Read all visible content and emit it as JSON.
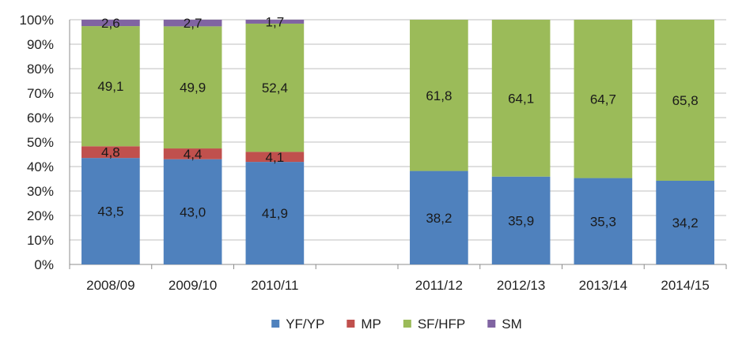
{
  "chart_data": {
    "type": "bar",
    "stacked": true,
    "percent_stacked": true,
    "categories": [
      "2008/09",
      "2009/10",
      "2010/11",
      "",
      "2011/12",
      "2012/13",
      "2013/14",
      "2014/15"
    ],
    "series": [
      {
        "name": "YF/YP",
        "color": "#4F81BD",
        "values": [
          43.5,
          43.0,
          41.9,
          null,
          38.2,
          35.9,
          35.3,
          34.2
        ],
        "labels": [
          "43,5",
          "43,0",
          "41,9",
          "",
          "38,2",
          "35,9",
          "35,3",
          "34,2"
        ]
      },
      {
        "name": "MP",
        "color": "#C0504D",
        "values": [
          4.8,
          4.4,
          4.1,
          null,
          0,
          0,
          0,
          0
        ],
        "labels": [
          "4,8",
          "4,4",
          "4,1",
          "",
          "",
          "",
          "",
          ""
        ]
      },
      {
        "name": "SF/HFP",
        "color": "#9BBB59",
        "values": [
          49.1,
          49.9,
          52.4,
          null,
          61.8,
          64.1,
          64.7,
          65.8
        ],
        "labels": [
          "49,1",
          "49,9",
          "52,4",
          "",
          "61,8",
          "64,1",
          "64,7",
          "65,8"
        ]
      },
      {
        "name": "SM",
        "color": "#8064A2",
        "values": [
          2.6,
          2.7,
          1.7,
          null,
          0,
          0,
          0,
          0
        ],
        "labels": [
          "2,6",
          "2,7",
          "1,7",
          "",
          "",
          "",
          "",
          ""
        ]
      }
    ],
    "yticks": [
      "0%",
      "10%",
      "20%",
      "30%",
      "40%",
      "50%",
      "60%",
      "70%",
      "80%",
      "90%",
      "100%"
    ],
    "ylim": [
      0,
      100
    ],
    "grid": true,
    "legend": "bottom"
  }
}
